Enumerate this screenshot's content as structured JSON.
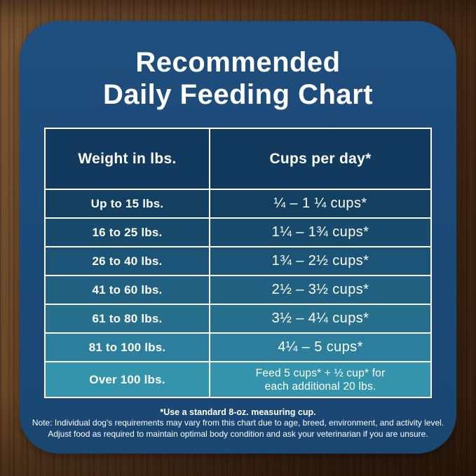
{
  "title": {
    "line1": "Recommended",
    "line2": "Daily Feeding Chart"
  },
  "table": {
    "headers": [
      "Weight in lbs.",
      "Cups per day*"
    ],
    "rows": [
      {
        "weight": "Up to 15 lbs.",
        "cups": "¼ – 1 ¼ cups*",
        "bg": "#134061"
      },
      {
        "weight": "16 to 25 lbs.",
        "cups": "1¼ – 1¾ cups*",
        "bg": "#174a6b"
      },
      {
        "weight": "26 to 40 lbs.",
        "cups": "1¾ – 2½ cups*",
        "bg": "#1b5476"
      },
      {
        "weight": "41 to 60 lbs.",
        "cups": "2½ – 3½ cups*",
        "bg": "#206182"
      },
      {
        "weight": "61 to 80 lbs.",
        "cups": "3½ – 4¼ cups*",
        "bg": "#26708e"
      },
      {
        "weight": "81 to 100 lbs.",
        "cups": "4¼ – 5 cups*",
        "bg": "#2c7f9c"
      },
      {
        "weight": "Over 100 lbs.",
        "cups": [
          "Feed 5 cups* + ½ cup* for",
          "each additional 20 lbs."
        ],
        "bg": "#3494ab",
        "tall": true
      }
    ]
  },
  "footnotes": {
    "measuring_cup": "*Use a standard 8-oz. measuring cup.",
    "note_line1": "Note: Individual dog's requirements may vary from this chart due to age, breed, environment, and activity level.",
    "note_line2": "Adjust food as required to maintain optimal body condition and ask your veterinarian if you are unsure."
  },
  "colors": {
    "panel_blue": "#1c4a77",
    "header_navy": "#123a5e",
    "border_white": "#ffffff",
    "text_white": "#ffffff",
    "wood_brown_light": "#6d4b2e",
    "wood_brown_dark": "#2f1b0d"
  },
  "chart_data": {
    "type": "table",
    "title": "Recommended Daily Feeding Chart",
    "columns": [
      "Weight in lbs.",
      "Cups per day*"
    ],
    "rows": [
      [
        "Up to 15 lbs.",
        "¼ – 1 ¼ cups*"
      ],
      [
        "16 to 25 lbs.",
        "1¼ – 1¾ cups*"
      ],
      [
        "26 to 40 lbs.",
        "1¾ – 2½ cups*"
      ],
      [
        "41 to 60 lbs.",
        "2½ – 3½ cups*"
      ],
      [
        "61 to 80 lbs.",
        "3½ – 4¼ cups*"
      ],
      [
        "81 to 100 lbs.",
        "4¼ – 5 cups*"
      ],
      [
        "Over 100 lbs.",
        "Feed 5 cups* + ½ cup* for each additional 20 lbs."
      ]
    ],
    "notes": [
      "*Use a standard 8-oz. measuring cup.",
      "Note: Individual dog's requirements may vary from this chart due to age, breed, environment, and activity level.",
      "Adjust food as required to maintain optimal body condition and ask your veterinarian if you are unsure."
    ]
  }
}
